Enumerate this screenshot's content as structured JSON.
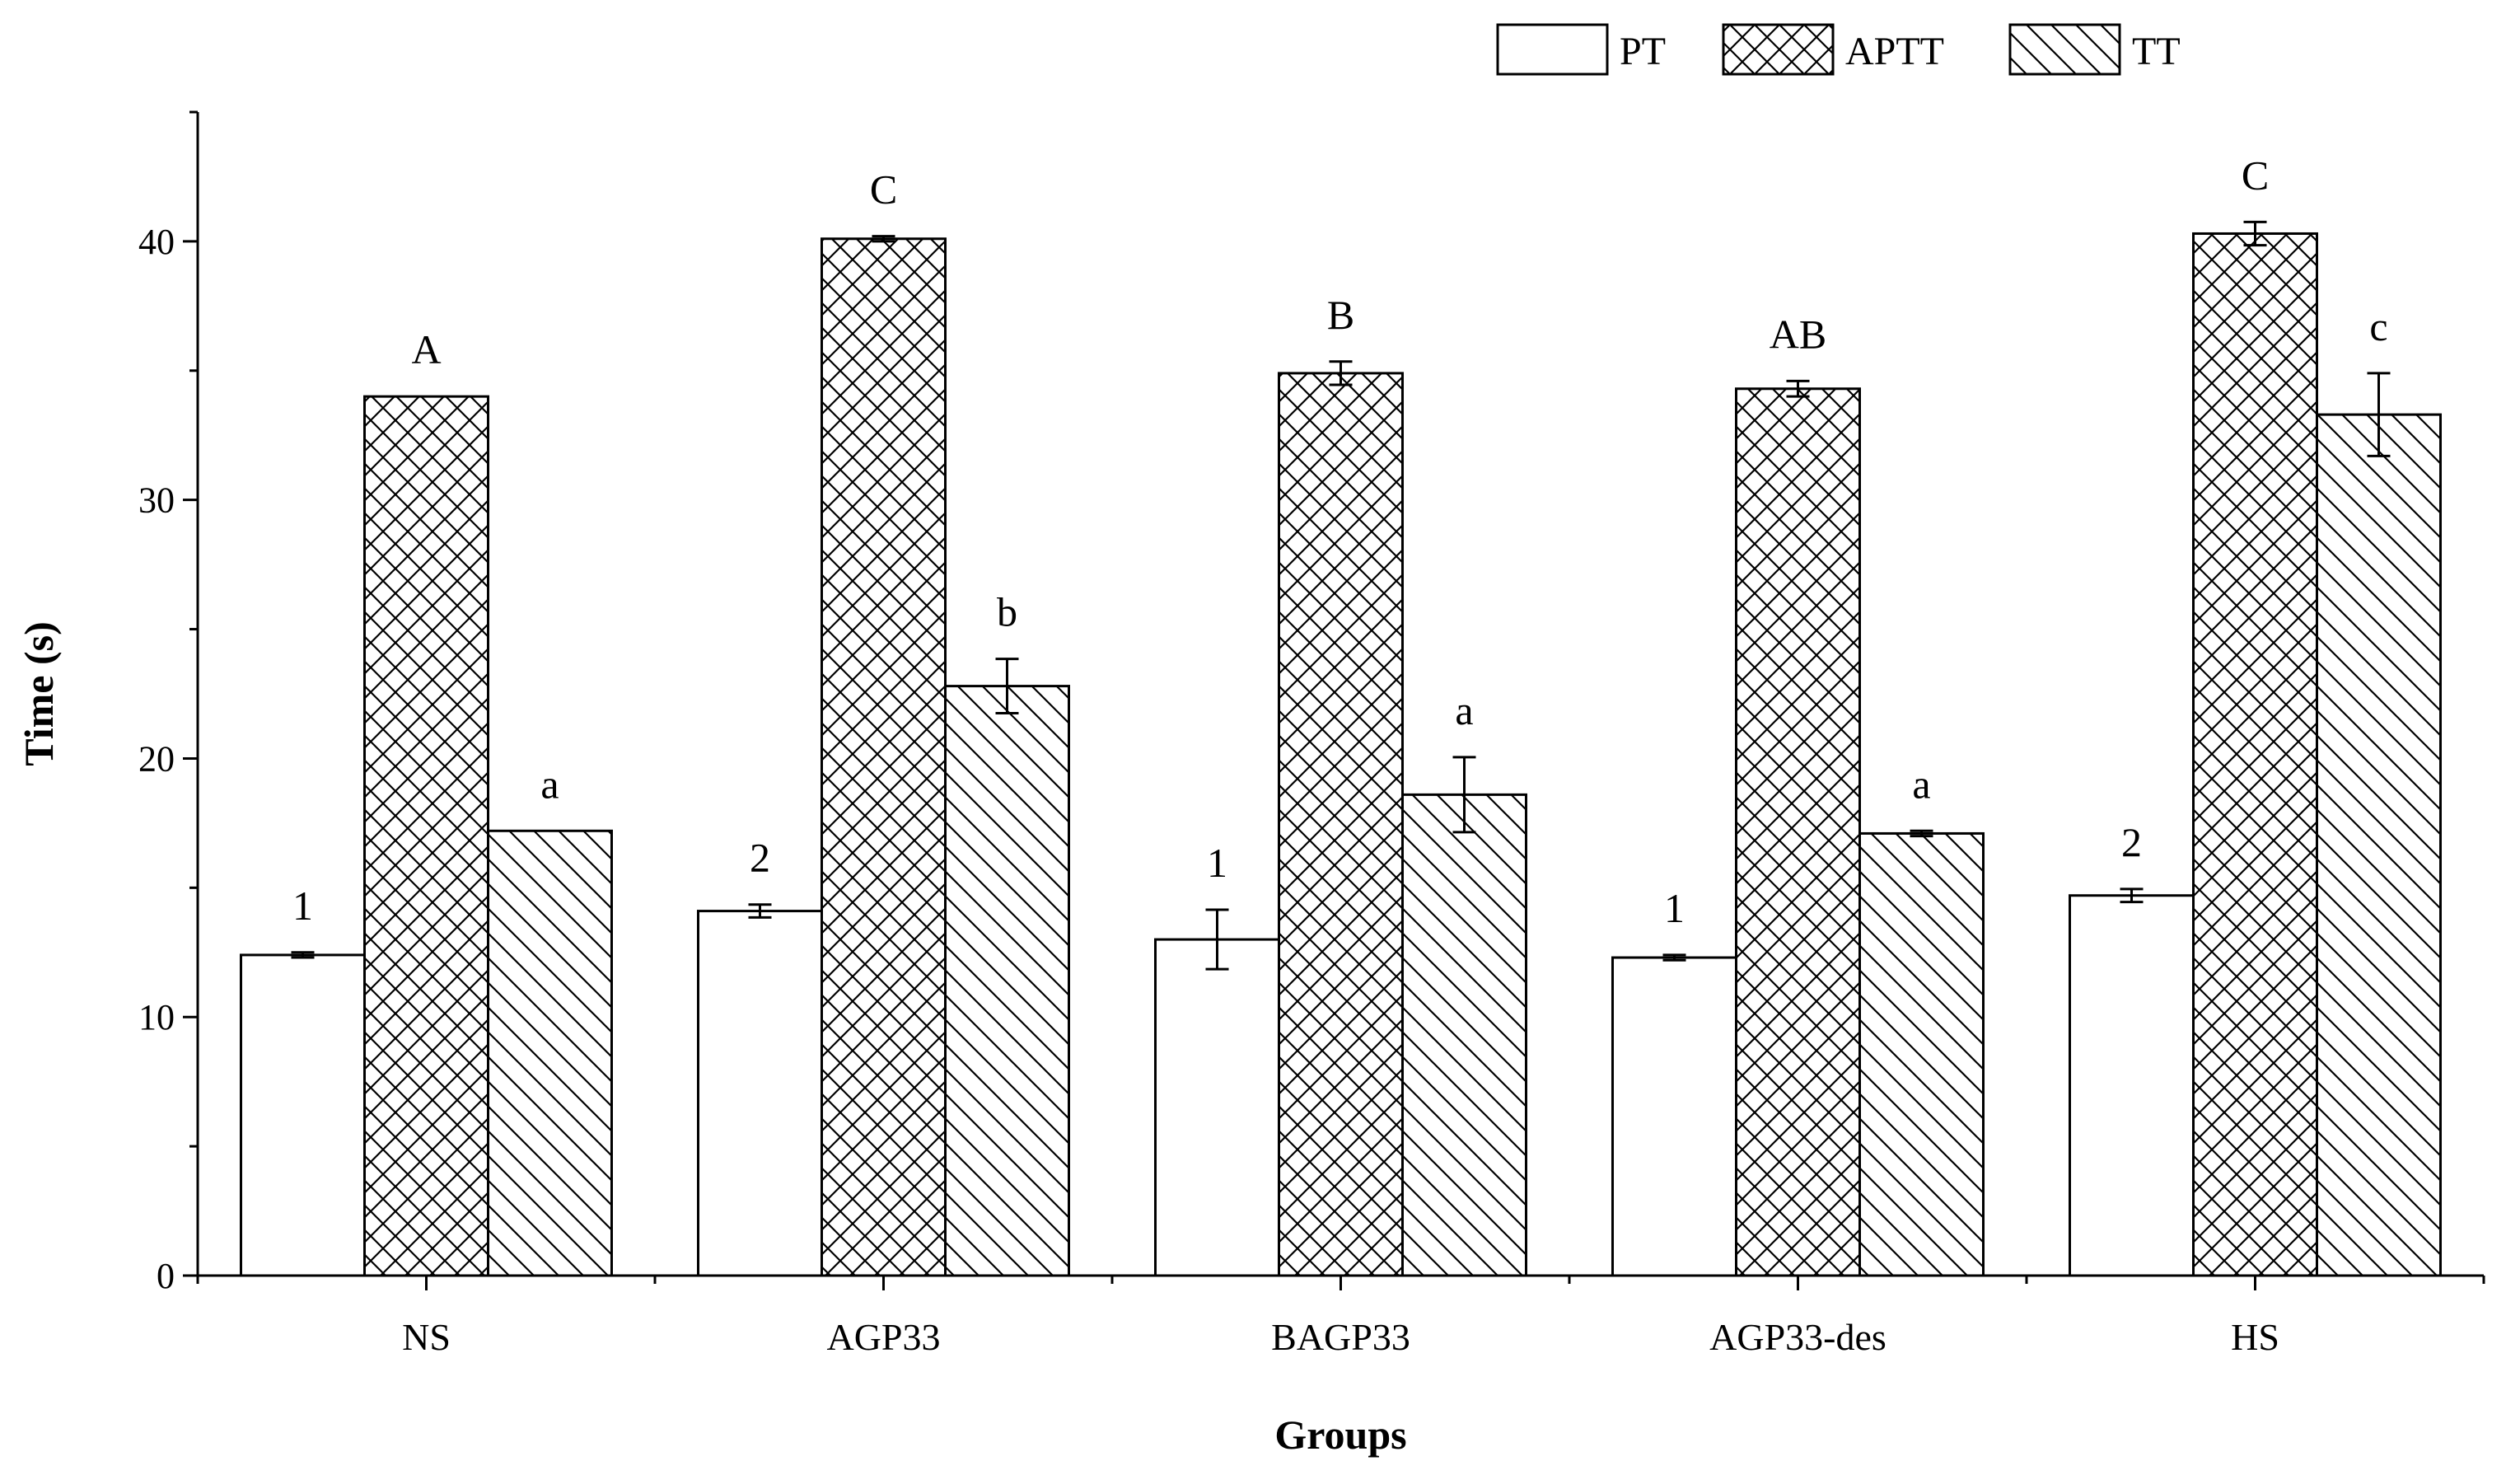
{
  "chart_data": {
    "type": "bar",
    "title": "",
    "xlabel": "Groups",
    "ylabel": "Time (s)",
    "ylim": [
      0,
      45
    ],
    "yticks": [
      0,
      10,
      20,
      30,
      40
    ],
    "categories": [
      "NS",
      "AGP33",
      "BAGP33",
      "AGP33-des",
      "HS"
    ],
    "series": [
      {
        "name": "PT",
        "pattern": "none",
        "values": [
          12.4,
          14.1,
          13.0,
          12.3,
          14.7
        ],
        "errors": [
          0.1,
          0.25,
          1.15,
          0.1,
          0.25
        ],
        "labels": [
          "1",
          "2",
          "1",
          "1",
          "2"
        ]
      },
      {
        "name": "APTT",
        "pattern": "crosshatch",
        "values": [
          34.0,
          40.1,
          34.9,
          34.3,
          40.3
        ],
        "errors": [
          0.0,
          0.1,
          0.45,
          0.3,
          0.45
        ],
        "labels": [
          "A",
          "C",
          "B",
          "AB",
          "C"
        ]
      },
      {
        "name": "TT",
        "pattern": "backslash",
        "values": [
          17.2,
          22.8,
          18.6,
          17.1,
          33.3
        ],
        "errors": [
          0.0,
          1.05,
          1.45,
          0.1,
          1.6
        ],
        "labels": [
          "a",
          "b",
          "a",
          "a",
          "c"
        ]
      }
    ],
    "legend": {
      "position": "top-right",
      "orientation": "horizontal"
    },
    "grid": false
  },
  "colors": {
    "bar_fill": "#ffffff",
    "stroke": "#000000",
    "background": "#ffffff"
  }
}
